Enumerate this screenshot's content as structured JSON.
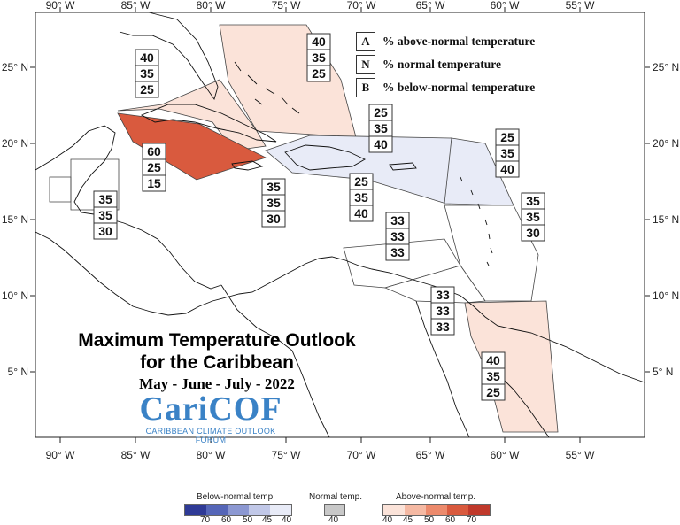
{
  "axes": {
    "lon_labels": [
      "90° W",
      "85° W",
      "80° W",
      "75° W",
      "70° W",
      "65° W",
      "60° W",
      "55° W"
    ],
    "lat_labels": [
      "25° N",
      "20° N",
      "15° N",
      "10° N",
      "5° N"
    ]
  },
  "key": {
    "a_letter": "A",
    "a_text": "% above-normal temperature",
    "n_letter": "N",
    "n_text": "% normal temperature",
    "b_letter": "B",
    "b_text": "% below-normal temperature"
  },
  "title": {
    "line1": "Maximum Temperature Outlook",
    "line2": "for the Caribbean",
    "dates": "May - June - July - 2022"
  },
  "logo": {
    "text": "CariCOF",
    "subtitle": "CARIBBEAN CLIMATE OUTLOOK FORUM"
  },
  "legend": {
    "below_title": "Below-normal temp.",
    "below_values": [
      "70",
      "60",
      "50",
      "45",
      "40"
    ],
    "normal_title": "Normal temp.",
    "normal_value": "40",
    "above_title": "Above-normal temp.",
    "above_values": [
      "40",
      "45",
      "50",
      "60",
      "70"
    ]
  },
  "colors": {
    "below": [
      "#2f3a96",
      "#5566b8",
      "#8c98d2",
      "#c1c8e8",
      "#e8ebf7"
    ],
    "normal": "#c8c8c8",
    "above": [
      "#fbe3d9",
      "#f5b9a3",
      "#ec8a6c",
      "#d95a3e",
      "#c0392b"
    ]
  },
  "forecasts": [
    {
      "id": "northwest",
      "a": "40",
      "n": "35",
      "b": "25"
    },
    {
      "id": "bahamas",
      "a": "40",
      "n": "35",
      "b": "25"
    },
    {
      "id": "cayman-jamaica-west",
      "a": "60",
      "n": "25",
      "b": "15"
    },
    {
      "id": "belize",
      "a": "35",
      "n": "35",
      "b": "30"
    },
    {
      "id": "jamaica",
      "a": "35",
      "n": "35",
      "b": "30"
    },
    {
      "id": "greater-antilles-north",
      "a": "25",
      "n": "35",
      "b": "40"
    },
    {
      "id": "greater-antilles-south",
      "a": "25",
      "n": "35",
      "b": "40"
    },
    {
      "id": "leeward-islands",
      "a": "25",
      "n": "35",
      "b": "40"
    },
    {
      "id": "windward-islands",
      "a": "35",
      "n": "35",
      "b": "30"
    },
    {
      "id": "abc-islands",
      "a": "33",
      "n": "33",
      "b": "33"
    },
    {
      "id": "trinidad",
      "a": "33",
      "n": "33",
      "b": "33"
    },
    {
      "id": "guianas",
      "a": "40",
      "n": "35",
      "b": "25"
    }
  ]
}
